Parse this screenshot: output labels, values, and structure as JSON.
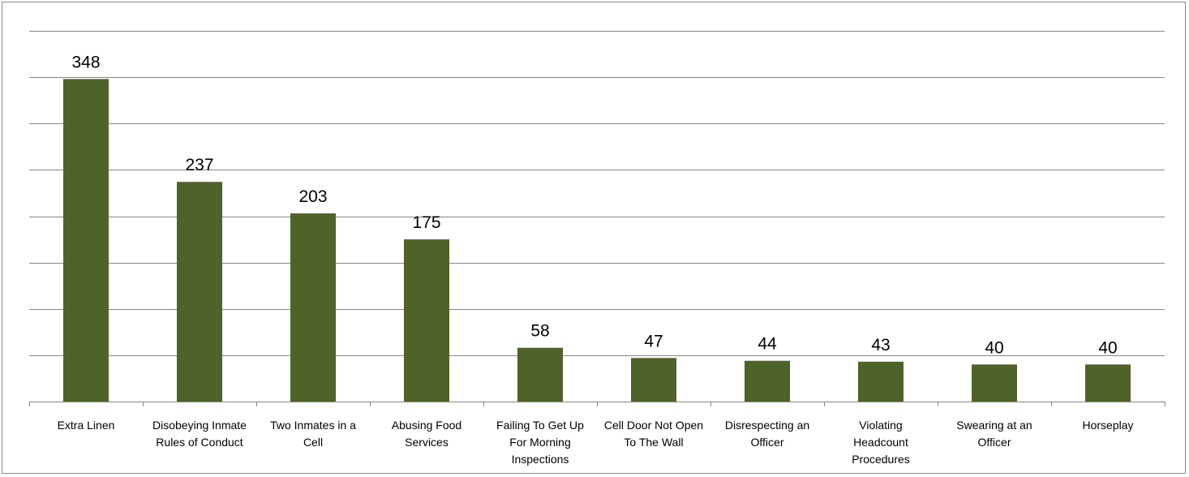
{
  "chart_data": {
    "type": "bar",
    "title": "",
    "xlabel": "",
    "ylabel": "",
    "ylim": [
      0,
      400
    ],
    "grid": true,
    "legend": "none",
    "bar_color": "#4F6228",
    "categories": [
      "Extra Linen",
      "Disobeying Inmate Rules of Conduct",
      "Two Inmates in a Cell",
      "Abusing Food Services",
      "Failing To Get Up For Morning Inspections",
      "Cell Door Not Open To The Wall",
      "Disrespecting an Officer",
      "Violating Headcount Procedures",
      "Swearing at an Officer",
      "Horseplay"
    ],
    "values": [
      348,
      237,
      203,
      175,
      58,
      47,
      44,
      43,
      40,
      40
    ]
  }
}
